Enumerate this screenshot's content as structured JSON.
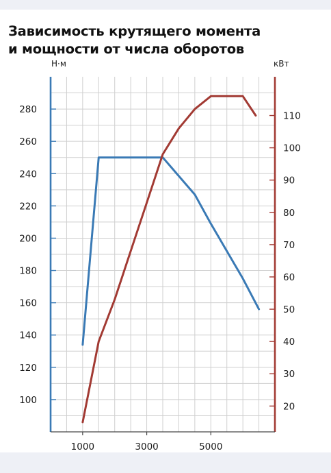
{
  "title_lines": [
    "Зависимость крутящего момента",
    "и мощности от числа оборотов"
  ],
  "chart_data": {
    "type": "line",
    "title": "Зависимость крутящего момента и мощности от числа оборотов",
    "grid": true,
    "x_axis": {
      "range": [
        0,
        7000
      ],
      "ticks": [
        1000,
        3000,
        5000
      ],
      "tick_labels": [
        "1000",
        "3000",
        "5000"
      ]
    },
    "left_axis": {
      "label": "Н·м",
      "range": [
        80,
        300
      ],
      "ticks": [
        100,
        120,
        140,
        160,
        180,
        200,
        220,
        240,
        260,
        280
      ],
      "color": "#3a7ab5"
    },
    "right_axis": {
      "label": "кВт",
      "range": [
        12,
        122
      ],
      "ticks": [
        20,
        30,
        40,
        50,
        60,
        70,
        80,
        90,
        100,
        110
      ],
      "color": "#a23a33"
    },
    "series": [
      {
        "axis": "left",
        "color": "#3a7ab5",
        "points": [
          [
            1000,
            134
          ],
          [
            1500,
            250
          ],
          [
            3500,
            250
          ],
          [
            4500,
            227
          ],
          [
            5000,
            209
          ],
          [
            6000,
            175
          ],
          [
            6500,
            156
          ]
        ]
      },
      {
        "axis": "right",
        "color": "#a23a33",
        "points": [
          [
            1000,
            15
          ],
          [
            1500,
            40
          ],
          [
            2000,
            53
          ],
          [
            2500,
            68
          ],
          [
            3000,
            83
          ],
          [
            3500,
            98
          ],
          [
            4000,
            106
          ],
          [
            4500,
            112
          ],
          [
            5000,
            116
          ],
          [
            6000,
            116
          ],
          [
            6400,
            110
          ]
        ]
      }
    ]
  }
}
